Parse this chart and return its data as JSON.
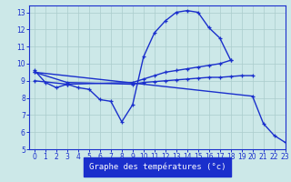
{
  "bg_color": "#cce8e8",
  "line_color": "#1a2fcc",
  "grid_color": "#aacccc",
  "xlabel": "Graphe des températures (°c)",
  "xlim": [
    -0.5,
    23
  ],
  "ylim": [
    5,
    13.4
  ],
  "xticks": [
    0,
    1,
    2,
    3,
    4,
    5,
    6,
    7,
    8,
    9,
    10,
    11,
    12,
    13,
    14,
    15,
    16,
    17,
    18,
    19,
    20,
    21,
    22,
    23
  ],
  "yticks": [
    5,
    6,
    7,
    8,
    9,
    10,
    11,
    12,
    13
  ],
  "series": [
    {
      "x": [
        0,
        1,
        2,
        3,
        4,
        5,
        6,
        7,
        8,
        9,
        10,
        11,
        12,
        13,
        14,
        15,
        16,
        17,
        18
      ],
      "y": [
        9.6,
        8.9,
        8.6,
        8.8,
        8.6,
        8.5,
        7.9,
        7.8,
        6.6,
        7.6,
        10.4,
        11.8,
        12.5,
        13.0,
        13.1,
        13.0,
        12.1,
        11.5,
        10.2
      ]
    },
    {
      "x": [
        0,
        3,
        9,
        10,
        11,
        12,
        13,
        14,
        15,
        16,
        17,
        18
      ],
      "y": [
        9.0,
        8.8,
        8.9,
        9.1,
        9.3,
        9.5,
        9.6,
        9.7,
        9.8,
        9.9,
        10.0,
        10.2
      ]
    },
    {
      "x": [
        0,
        3,
        9,
        10,
        11,
        12,
        13,
        14,
        15,
        16,
        17,
        18,
        19,
        20
      ],
      "y": [
        9.5,
        8.9,
        8.8,
        8.9,
        8.95,
        9.0,
        9.05,
        9.1,
        9.15,
        9.2,
        9.2,
        9.25,
        9.3,
        9.3
      ]
    },
    {
      "x": [
        0,
        20,
        21,
        22,
        23
      ],
      "y": [
        9.5,
        8.1,
        6.5,
        5.8,
        5.4
      ]
    }
  ]
}
